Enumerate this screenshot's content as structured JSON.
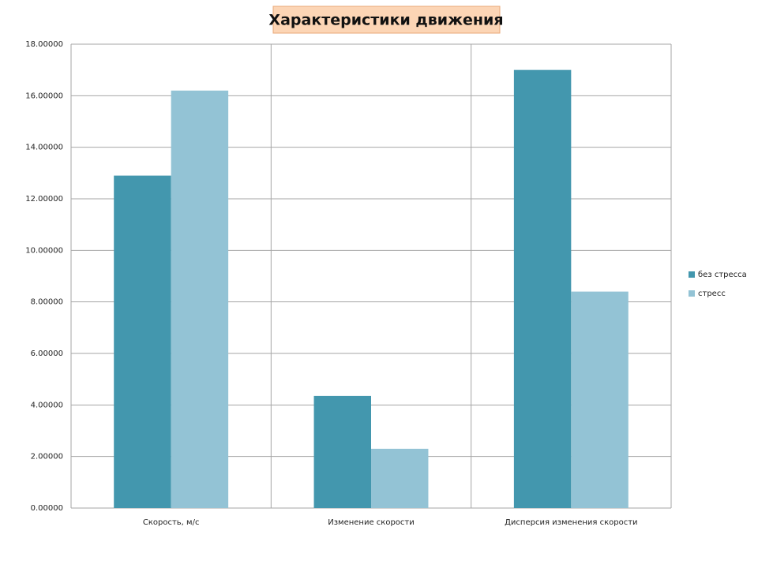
{
  "chart_data": {
    "type": "bar",
    "title": "Характеристики движения",
    "categories": [
      "Скорость, м/с",
      "Изменение скорости",
      "Дисперсия изменения скорости"
    ],
    "series": [
      {
        "name": "без стресса",
        "color": "#4397ae",
        "values": [
          12.9,
          4.35,
          17.0
        ]
      },
      {
        "name": "стресс",
        "color": "#93c3d5",
        "values": [
          16.2,
          2.3,
          8.4
        ]
      }
    ],
    "ylim": [
      0,
      18
    ],
    "yticks": [
      {
        "value": 0,
        "label": "0.00000"
      },
      {
        "value": 2,
        "label": "2.00000"
      },
      {
        "value": 4,
        "label": "4.00000"
      },
      {
        "value": 6,
        "label": "6.00000"
      },
      {
        "value": 8,
        "label": "8.00000"
      },
      {
        "value": 10,
        "label": "10.00000"
      },
      {
        "value": 12,
        "label": "12.00000"
      },
      {
        "value": 14,
        "label": "14.00000"
      },
      {
        "value": 16,
        "label": "16.00000"
      },
      {
        "value": 18,
        "label": "18.00000"
      }
    ],
    "grid": true,
    "legend": "right"
  }
}
